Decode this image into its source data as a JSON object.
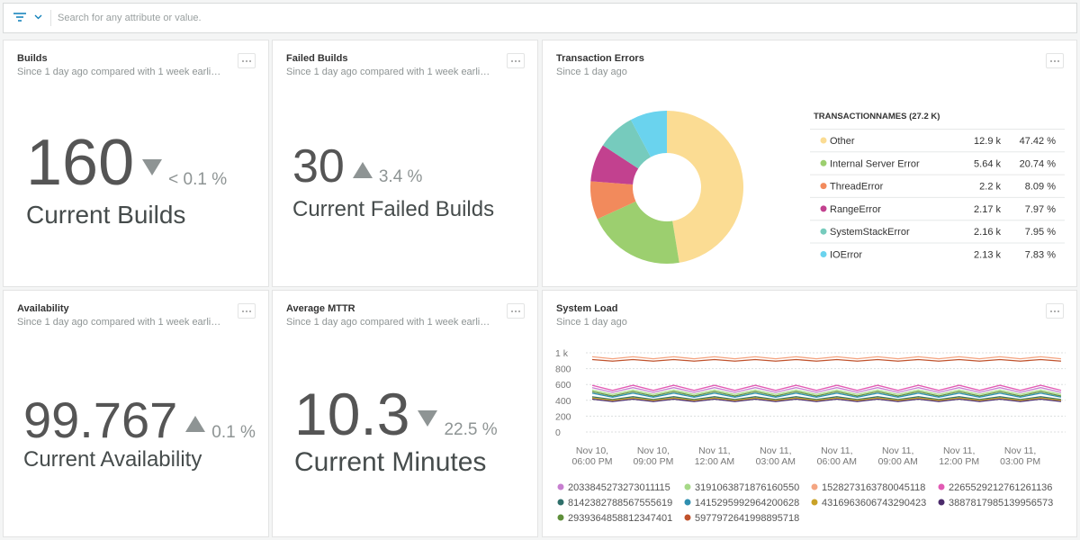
{
  "search": {
    "placeholder": "Search for any attribute or value."
  },
  "billboards": [
    {
      "title": "Builds",
      "subtitle": "Since 1 day ago compared with 1 week earli…",
      "value": 160,
      "direction": "down",
      "change": "< 0.1 %",
      "label": "Current Builds"
    },
    {
      "title": "Failed Builds",
      "subtitle": "Since 1 day ago compared with 1 week earli…",
      "value": 30,
      "direction": "up",
      "change": "3.4 %",
      "label": "Current Failed Builds"
    },
    {
      "title": "Availability",
      "subtitle": "Since 1 day ago compared with 1 week earli…",
      "value": 99.767,
      "direction": "up",
      "change": "0.1 %",
      "label": "Current Availability"
    },
    {
      "title": "Average MTTR",
      "subtitle": "Since 1 day ago compared with 1 week earli…",
      "value": 10.3,
      "direction": "down",
      "change": "22.5 %",
      "label": "Current Minutes"
    }
  ],
  "chart_data": [
    {
      "type": "pie",
      "title": "Transaction Errors",
      "subtitle": "Since 1 day ago",
      "legend_title": "TRANSACTIONNAMES (27.2 K)",
      "categories": [
        "Other",
        "Internal Server Error",
        "ThreadError",
        "RangeError",
        "SystemStackError",
        "IOError"
      ],
      "values": [
        47.42,
        20.74,
        8.09,
        7.97,
        7.95,
        7.83
      ],
      "value_labels": [
        "47.42 %",
        "20.74 %",
        "8.09 %",
        "7.97 %",
        "7.95 %",
        "7.83 %"
      ],
      "counts": [
        "12.9 k",
        "5.64 k",
        "2.2 k",
        "2.17 k",
        "2.16 k",
        "2.13 k"
      ],
      "colors": [
        "#fbdc93",
        "#9ccf6f",
        "#f28a5c",
        "#c2418f",
        "#76cbbd",
        "#6ad3ee"
      ]
    },
    {
      "type": "line",
      "title": "System Load",
      "subtitle": "Since 1 day ago",
      "categories": [
        "Nov 10,\n06:00 PM",
        null,
        null,
        "Nov 10,\n09:00 PM",
        null,
        null,
        "Nov 11,\n12:00 AM",
        null,
        null,
        "Nov 11,\n03:00 AM",
        null,
        null,
        "Nov 11,\n06:00 AM",
        null,
        null,
        "Nov 11,\n09:00 AM",
        null,
        null,
        "Nov 11,\n12:00 PM",
        null,
        null,
        "Nov 11,\n03:00 PM",
        null,
        null
      ],
      "ylim": [
        0,
        1000
      ],
      "yticks": [
        0,
        200,
        400,
        600,
        800,
        {
          "value": 1000,
          "label": "1 k"
        }
      ],
      "grid": true,
      "series": [
        {
          "name": "2033845273273011115",
          "color": "#c77fd0",
          "values": [
            560,
            500,
            560,
            500,
            560,
            500,
            560,
            500,
            560,
            500,
            560,
            500,
            560,
            500,
            560,
            500,
            560,
            500,
            560,
            500,
            560,
            500,
            560,
            500
          ]
        },
        {
          "name": "3191063871876160550",
          "color": "#a6d987",
          "values": [
            530,
            475,
            530,
            475,
            530,
            475,
            530,
            475,
            530,
            475,
            530,
            475,
            530,
            475,
            530,
            475,
            530,
            475,
            530,
            475,
            530,
            475,
            530,
            475
          ]
        },
        {
          "name": "1528273163780045118",
          "color": "#f4a582",
          "values": [
            950,
            925,
            950,
            925,
            950,
            925,
            950,
            925,
            950,
            925,
            950,
            925,
            950,
            925,
            950,
            925,
            950,
            925,
            950,
            925,
            950,
            925,
            950,
            925
          ]
        },
        {
          "name": "2265529212761261136",
          "color": "#e25bb4",
          "values": [
            590,
            525,
            590,
            525,
            590,
            525,
            590,
            525,
            590,
            525,
            590,
            525,
            590,
            525,
            590,
            525,
            590,
            525,
            590,
            525,
            590,
            525,
            590,
            525
          ]
        },
        {
          "name": "8142382788567555619",
          "color": "#2f6f6a",
          "values": [
            445,
            410,
            445,
            410,
            445,
            410,
            445,
            410,
            445,
            410,
            445,
            410,
            445,
            410,
            445,
            410,
            445,
            410,
            445,
            410,
            445,
            410,
            445,
            410
          ]
        },
        {
          "name": "1415295992964200628",
          "color": "#2f8fb0",
          "values": [
            490,
            440,
            490,
            440,
            490,
            440,
            490,
            440,
            490,
            440,
            490,
            440,
            490,
            440,
            490,
            440,
            490,
            440,
            490,
            440,
            490,
            440,
            490,
            440
          ]
        },
        {
          "name": "4316963606743290423",
          "color": "#c9a227",
          "values": [
            430,
            400,
            430,
            400,
            430,
            400,
            430,
            400,
            430,
            400,
            430,
            400,
            430,
            400,
            430,
            400,
            430,
            400,
            430,
            400,
            430,
            400,
            430,
            400
          ]
        },
        {
          "name": "3887817985139956573",
          "color": "#4b2b6b",
          "values": [
            415,
            385,
            415,
            385,
            415,
            385,
            415,
            385,
            415,
            385,
            415,
            385,
            415,
            385,
            415,
            385,
            415,
            385,
            415,
            385,
            415,
            385,
            415,
            385
          ]
        },
        {
          "name": "2939364858812347401",
          "color": "#5f8f3a",
          "values": [
            510,
            455,
            510,
            455,
            510,
            455,
            510,
            455,
            510,
            455,
            510,
            455,
            510,
            455,
            510,
            455,
            510,
            455,
            510,
            455,
            510,
            455,
            510,
            455
          ]
        },
        {
          "name": "5977972641998895718",
          "color": "#c0522c",
          "values": [
            915,
            895,
            915,
            895,
            915,
            895,
            915,
            895,
            915,
            895,
            915,
            895,
            915,
            895,
            915,
            895,
            915,
            895,
            915,
            895,
            915,
            895,
            915,
            895
          ]
        }
      ]
    }
  ]
}
